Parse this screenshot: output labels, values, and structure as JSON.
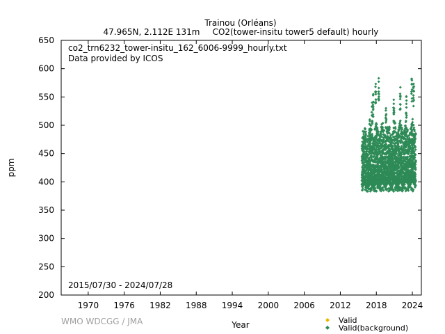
{
  "title": {
    "line1": "Trainou (Orléans)",
    "line2_left": "47.965N, 2.112E 131m",
    "line2_right": "CO2(tower-insitu tower5 default) hourly"
  },
  "annotations": {
    "filename": "co2_trn6232_tower-insitu_162_6006-9999_hourly.txt",
    "provider": "Data provided by ICOS",
    "date_range": "2015/07/30 - 2024/07/28"
  },
  "credit": "WMO WDCGG / JMA",
  "legend": {
    "valid_label": "Valid",
    "background_label": "Valid(background)",
    "valid_color": "#e8b800",
    "background_color": "#2e8b57"
  },
  "chart_data": {
    "type": "scatter",
    "xlabel": "Year",
    "ylabel": "ppm",
    "xlim": [
      1965.5,
      2025.5
    ],
    "ylim": [
      200,
      650
    ],
    "x_ticks": [
      1970,
      1976,
      1982,
      1988,
      1994,
      2000,
      2006,
      2012,
      2018,
      2024
    ],
    "y_ticks": [
      200,
      250,
      300,
      350,
      400,
      450,
      500,
      550,
      600,
      650
    ],
    "series": [
      {
        "name": "Valid(background)",
        "color": "#2e8b57",
        "x_range": [
          2015.58,
          2024.57
        ],
        "typical_min": 392,
        "typical_max": 490,
        "absolute_min": 383,
        "peaks": [
          {
            "x": 2016.9,
            "y": 510
          },
          {
            "x": 2017.3,
            "y": 540
          },
          {
            "x": 2017.5,
            "y": 555
          },
          {
            "x": 2017.9,
            "y": 573
          },
          {
            "x": 2018.4,
            "y": 583
          },
          {
            "x": 2019.6,
            "y": 530
          },
          {
            "x": 2020.9,
            "y": 545
          },
          {
            "x": 2022.0,
            "y": 567
          },
          {
            "x": 2023.0,
            "y": 551
          },
          {
            "x": 2023.9,
            "y": 582
          },
          {
            "x": 2024.2,
            "y": 573
          }
        ]
      },
      {
        "name": "Valid",
        "color": "#e8b800",
        "values": []
      }
    ]
  }
}
